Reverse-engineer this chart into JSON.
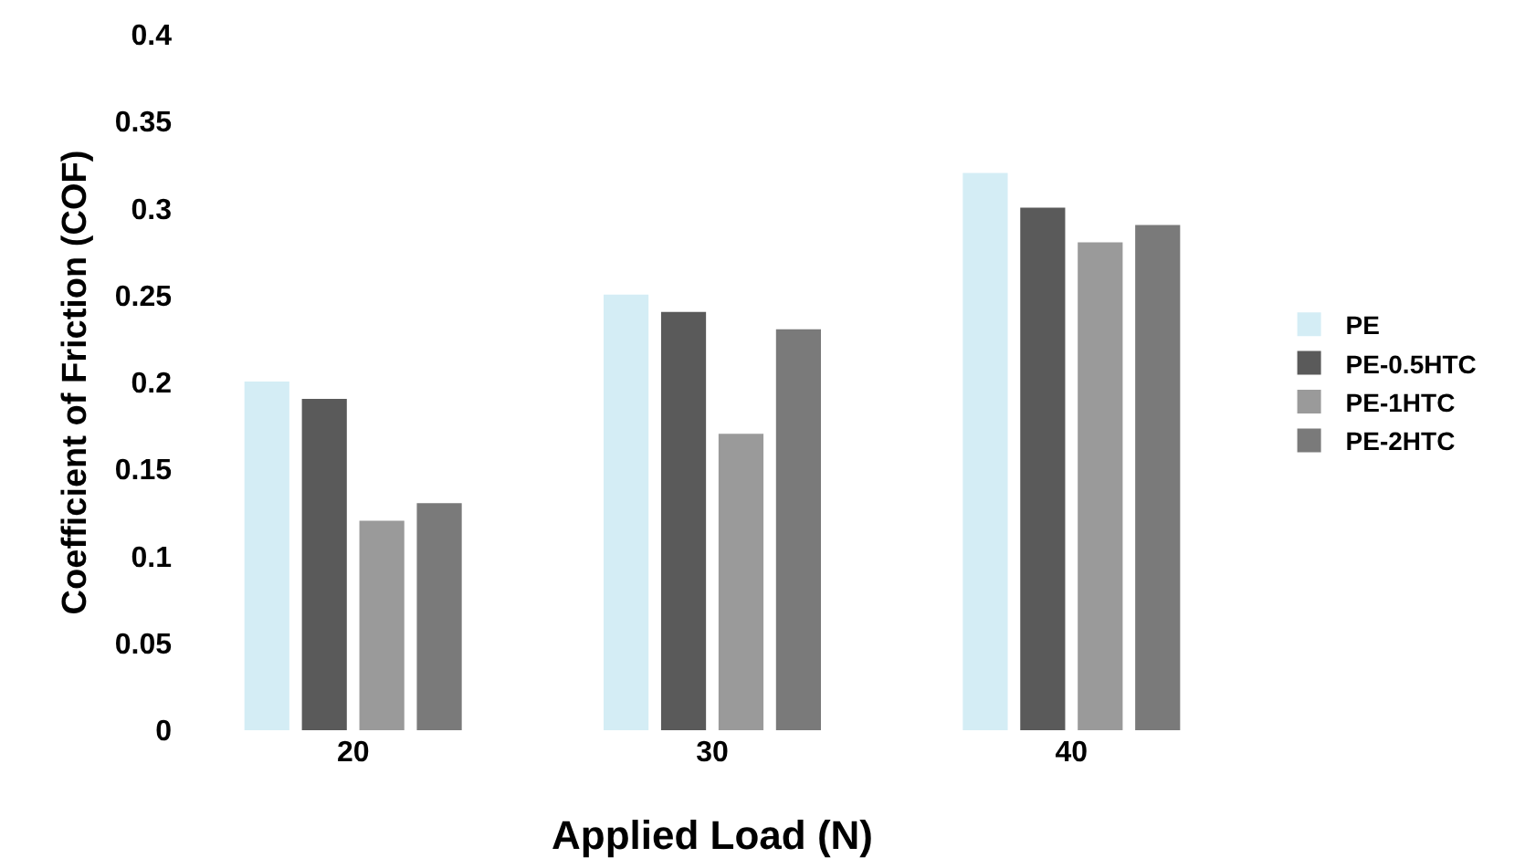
{
  "chart_data": {
    "type": "bar",
    "xlabel": "Applied Load (N)",
    "ylabel": "Coefficient of Friction (COF)",
    "categories": [
      "20",
      "30",
      "40"
    ],
    "series": [
      {
        "name": "PE",
        "color": "#d4edf5",
        "values": [
          0.2,
          0.25,
          0.32
        ]
      },
      {
        "name": "PE-0.5HTC",
        "color": "#5a5a5a",
        "values": [
          0.19,
          0.24,
          0.3
        ]
      },
      {
        "name": "PE-1HTC",
        "color": "#9a9a9a",
        "values": [
          0.12,
          0.17,
          0.28
        ]
      },
      {
        "name": "PE-2HTC",
        "color": "#7a7a7a",
        "values": [
          0.13,
          0.23,
          0.29
        ]
      }
    ],
    "ylim": [
      0,
      0.4
    ],
    "yticks": [
      0,
      0.05,
      0.1,
      0.15,
      0.2,
      0.25,
      0.3,
      0.35,
      0.4
    ],
    "grid": false,
    "legend": "right"
  }
}
